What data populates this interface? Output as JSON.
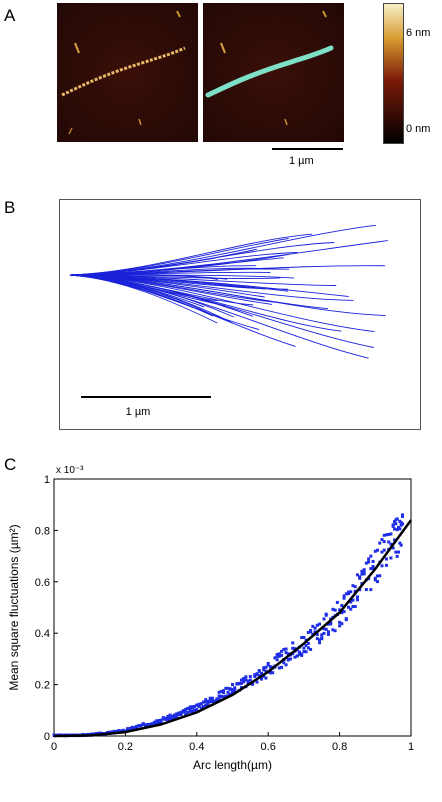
{
  "panel_a": {
    "letter": "A",
    "scale_bar_label": "1 µm",
    "colorbar": {
      "top_label": "6 nm",
      "bottom_label": "0 nm",
      "color_low": "#000000",
      "color_mid": "#7a1a08",
      "color_high": "#f5f0c8"
    },
    "trace_color_left": "#e8b866",
    "trace_color_right": "#7fe0c8"
  },
  "panel_b": {
    "letter": "B",
    "scale_bar_label": "1 µm",
    "line_color": "#1a22d8"
  },
  "panel_c": {
    "letter": "C",
    "exponent_label": "x 10⁻³"
  },
  "chart_data": {
    "type": "scatter",
    "title": "",
    "xlabel": "Arc length(µm)",
    "ylabel": "Mean square fluctuations (µm²)",
    "xlim": [
      0,
      1
    ],
    "ylim": [
      0,
      1
    ],
    "x_ticks": [
      "0",
      "0.2",
      "0.4",
      "0.6",
      "0.8",
      "1"
    ],
    "y_ticks": [
      "0",
      "0.2",
      "0.4",
      "0.6",
      "0.8",
      "1"
    ],
    "grid": false,
    "colors": {
      "points": "#1f2ee6",
      "fit": "#000000"
    },
    "points": {
      "x": [
        0.0,
        0.05,
        0.1,
        0.15,
        0.2,
        0.25,
        0.3,
        0.35,
        0.4,
        0.45,
        0.5,
        0.55,
        0.6,
        0.65,
        0.7,
        0.75,
        0.8,
        0.85,
        0.9,
        0.95,
        0.98
      ],
      "y": [
        0.002,
        0.002,
        0.004,
        0.01,
        0.02,
        0.04,
        0.06,
        0.08,
        0.11,
        0.14,
        0.18,
        0.21,
        0.25,
        0.3,
        0.34,
        0.4,
        0.46,
        0.55,
        0.64,
        0.73,
        0.78
      ],
      "spread": [
        0.002,
        0.002,
        0.003,
        0.004,
        0.006,
        0.008,
        0.01,
        0.012,
        0.015,
        0.02,
        0.025,
        0.03,
        0.04,
        0.045,
        0.05,
        0.06,
        0.07,
        0.08,
        0.09,
        0.1,
        0.1
      ]
    },
    "fit": {
      "x": [
        0.0,
        0.1,
        0.2,
        0.3,
        0.4,
        0.5,
        0.6,
        0.7,
        0.8,
        0.9,
        1.0
      ],
      "y": [
        0.0,
        0.002,
        0.015,
        0.045,
        0.092,
        0.16,
        0.25,
        0.36,
        0.48,
        0.65,
        0.84
      ]
    }
  }
}
